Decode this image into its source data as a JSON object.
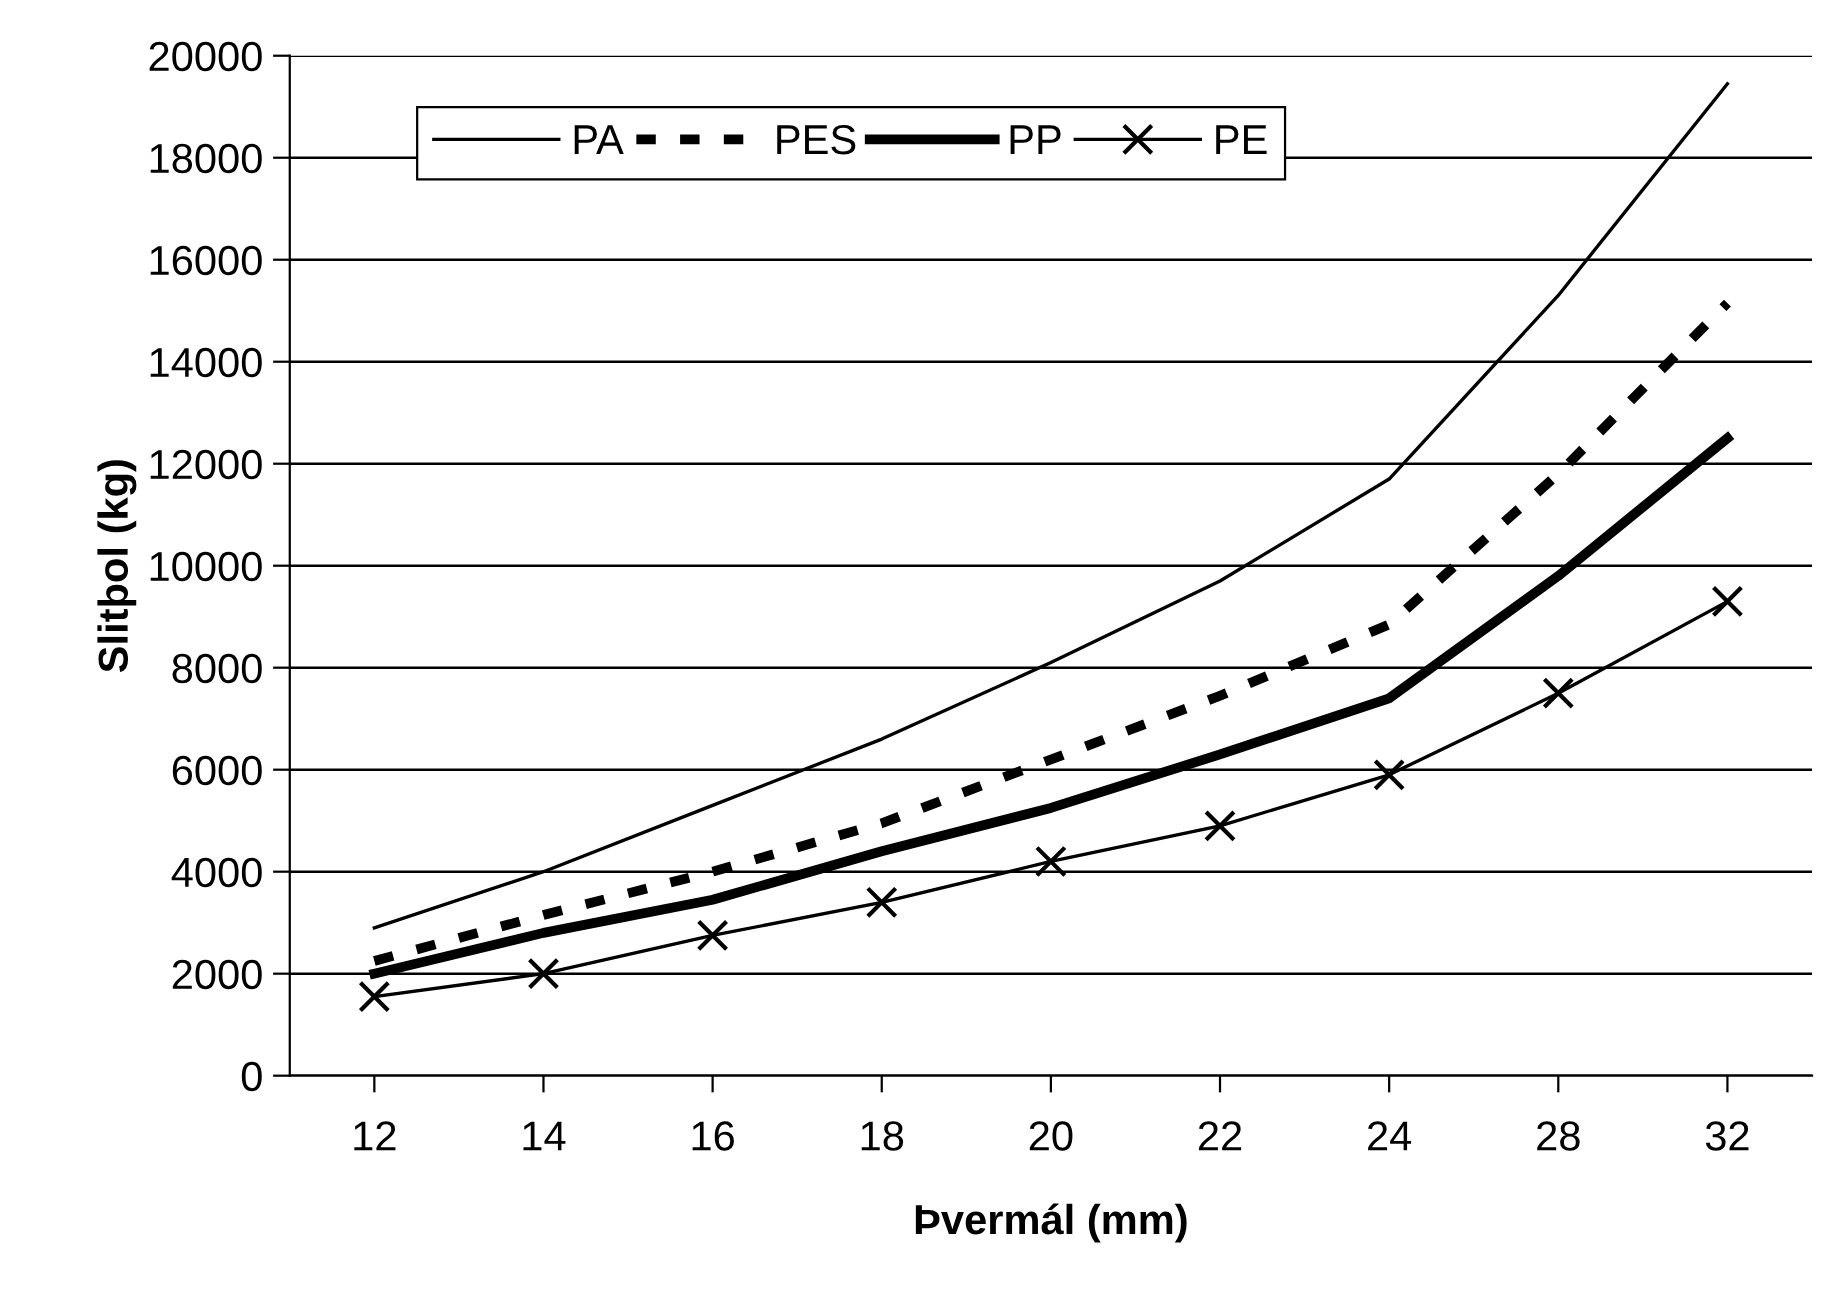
{
  "chart_data": {
    "type": "line",
    "xlabel": "Þvermál (mm)",
    "ylabel": "Slitþol (kg)",
    "categories": [
      "12",
      "14",
      "16",
      "18",
      "20",
      "22",
      "24",
      "28",
      "32"
    ],
    "series": [
      {
        "name": "PA",
        "color": "#000000",
        "line_style": "solid",
        "marker": "none",
        "values": [
          2900,
          4000,
          5300,
          6600,
          8100,
          9700,
          11700,
          15300,
          19450
        ]
      },
      {
        "name": "PES",
        "color": "#000000",
        "line_style": "dashed",
        "marker": "none",
        "values": [
          2250,
          3150,
          4000,
          4950,
          6200,
          7450,
          8850,
          11800,
          15150
        ]
      },
      {
        "name": "PP",
        "color": "#000000",
        "line_style": "solid",
        "marker": "none",
        "values": [
          2000,
          2800,
          3450,
          4400,
          5250,
          6300,
          7400,
          9800,
          12500
        ]
      },
      {
        "name": "PE",
        "color": "#000000",
        "line_style": "solid",
        "marker": "cross",
        "values": [
          1550,
          2000,
          2750,
          3400,
          4200,
          4900,
          5900,
          7500,
          9300
        ]
      }
    ],
    "ylim": [
      0,
      20000
    ],
    "yticks": [
      0,
      2000,
      4000,
      6000,
      8000,
      10000,
      12000,
      14000,
      16000,
      18000,
      20000
    ],
    "grid": "y",
    "legend": "top"
  }
}
